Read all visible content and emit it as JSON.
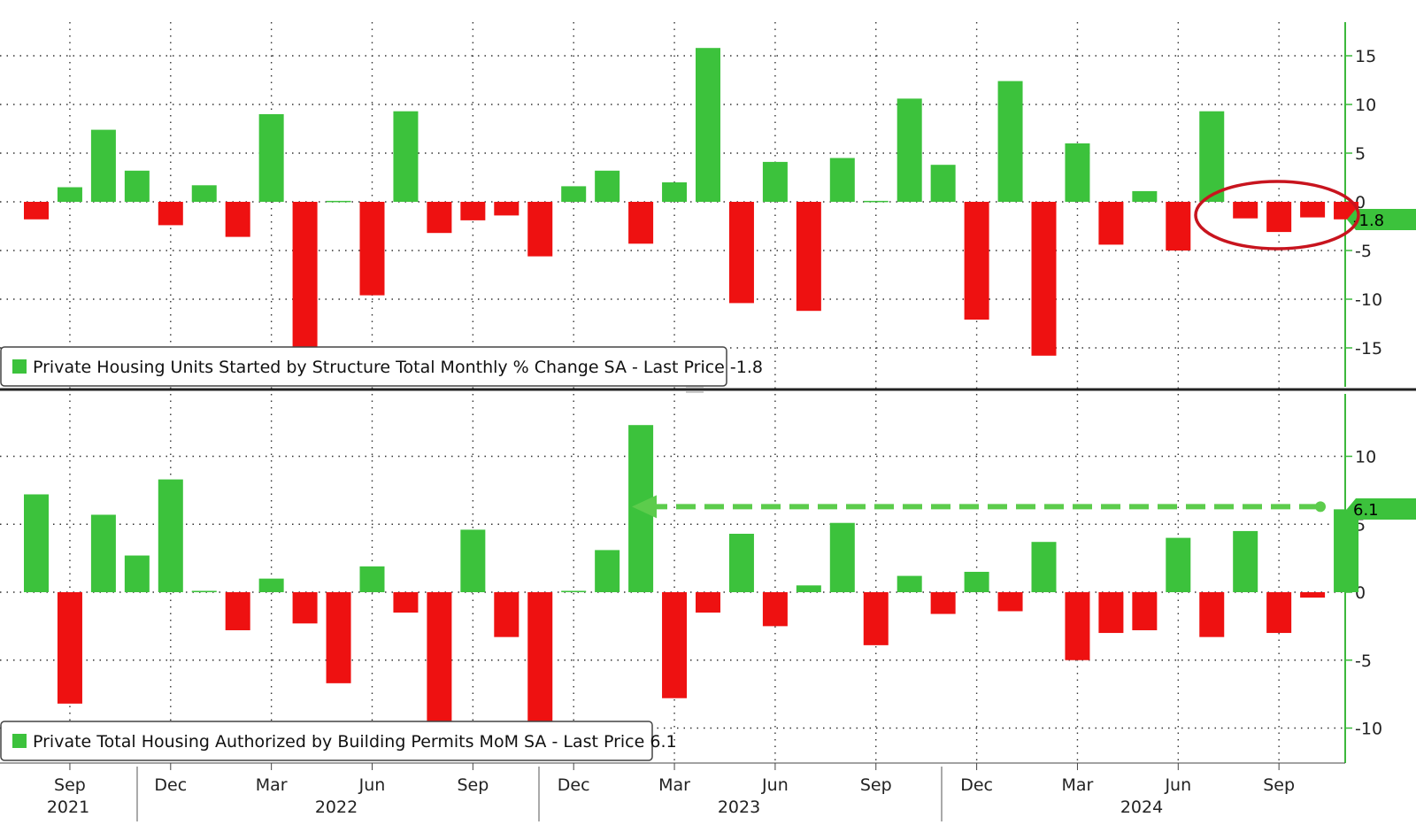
{
  "colors": {
    "positive": "#3cc23c",
    "negative": "#ee1111",
    "axis": "#3cb83c",
    "grid": "#333333",
    "divider": "#222222",
    "highlight_circle": "#c8141e",
    "arrow": "#5ccc4c"
  },
  "x_axis": {
    "month_ticks": [
      "Sep",
      "Dec",
      "Mar",
      "Jun",
      "Sep",
      "Dec",
      "Mar",
      "Jun",
      "Sep",
      "Dec",
      "Mar",
      "Jun",
      "Sep"
    ],
    "year_labels": [
      "2021",
      "2022",
      "2023",
      "2024"
    ]
  },
  "chart_data": [
    {
      "type": "bar",
      "legend": "Private Housing Units Started by Structure Total Monthly % Change SA - Last Price -1.8",
      "last_value_label": "-1.8",
      "y_ticks": [
        "15",
        "10",
        "5",
        "0",
        "-5",
        "-10",
        "-15"
      ],
      "ylim": [
        -18,
        19
      ],
      "grid": true,
      "legend_position": "bottom-left",
      "x": [
        "2021-08",
        "2021-09",
        "2021-10",
        "2021-11",
        "2021-12",
        "2022-01",
        "2022-02",
        "2022-03",
        "2022-04",
        "2022-05",
        "2022-06",
        "2022-07",
        "2022-08",
        "2022-09",
        "2022-10",
        "2022-11",
        "2022-12",
        "2023-01",
        "2023-02",
        "2023-03",
        "2023-04",
        "2023-05",
        "2023-06",
        "2023-07",
        "2023-08",
        "2023-09",
        "2023-10",
        "2023-11",
        "2023-12",
        "2024-01",
        "2024-02",
        "2024-03",
        "2024-04",
        "2024-05",
        "2024-06",
        "2024-07",
        "2024-08",
        "2024-09",
        "2024-10",
        "2024-11"
      ],
      "values": [
        -1.8,
        1.5,
        7.4,
        3.2,
        -2.4,
        1.7,
        -3.6,
        9.0,
        -15.1,
        0.1,
        -9.6,
        9.3,
        -3.2,
        -1.9,
        -1.4,
        -5.6,
        1.6,
        3.2,
        -4.3,
        2.0,
        15.8,
        -10.4,
        4.1,
        -11.2,
        4.5,
        0.1,
        10.6,
        3.8,
        -12.1,
        12.4,
        -15.8,
        6.0,
        -4.4,
        1.1,
        -5.0,
        9.3,
        -1.7,
        -3.1,
        -1.6,
        -1.8
      ],
      "annotation": "circle around last three bars"
    },
    {
      "type": "bar",
      "legend": "Private Total Housing Authorized by Building Permits MoM SA - Last Price 6.1",
      "last_value_label": "6.1",
      "y_ticks": [
        "10",
        "5",
        "0",
        "-5",
        "-10"
      ],
      "ylim": [
        -12,
        14.5
      ],
      "grid": true,
      "legend_position": "bottom-left",
      "x": [
        "2021-08",
        "2021-09",
        "2021-10",
        "2021-11",
        "2021-12",
        "2022-01",
        "2022-02",
        "2022-03",
        "2022-04",
        "2022-05",
        "2022-06",
        "2022-07",
        "2022-08",
        "2022-09",
        "2022-10",
        "2022-11",
        "2022-12",
        "2023-01",
        "2023-02",
        "2023-03",
        "2023-04",
        "2023-05",
        "2023-06",
        "2023-07",
        "2023-08",
        "2023-09",
        "2023-10",
        "2023-11",
        "2023-12",
        "2024-01",
        "2024-02",
        "2024-03",
        "2024-04",
        "2024-05",
        "2024-06",
        "2024-07",
        "2024-08",
        "2024-09",
        "2024-10",
        "2024-11"
      ],
      "values": [
        7.2,
        -8.2,
        5.7,
        2.7,
        8.3,
        0.1,
        -2.8,
        1.0,
        -2.3,
        -6.7,
        1.9,
        -1.5,
        -10.2,
        4.6,
        -3.3,
        -10.2,
        0.1,
        3.1,
        12.3,
        -7.8,
        -1.5,
        4.3,
        -2.5,
        0.5,
        5.1,
        -3.9,
        1.2,
        -1.6,
        1.5,
        -1.4,
        3.7,
        -5.0,
        -3.0,
        -2.8,
        4.0,
        -3.3,
        4.5,
        -3.0,
        -0.4,
        6.1
      ],
      "annotation": "dashed arrow from last bar back to 2023-02 level"
    }
  ]
}
